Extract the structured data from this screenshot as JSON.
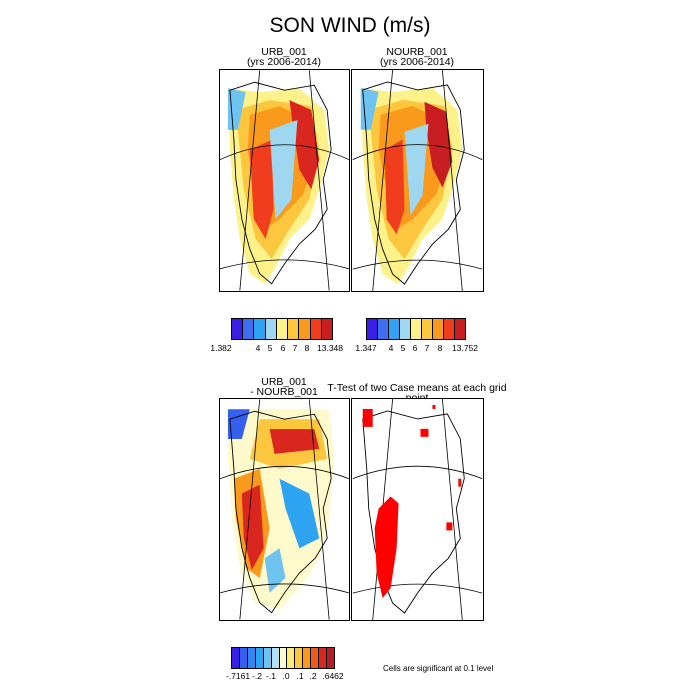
{
  "figure_title": "SON WIND (m/s)",
  "panels": {
    "urb": {
      "title_line1": "URB_001",
      "title_line2": "(yrs 2006-2014)"
    },
    "nourb": {
      "title_line1": "NOURB_001",
      "title_line2": "(yrs 2006-2014)"
    },
    "diff": {
      "title_line1": "URB_001",
      "title_line2": "- NOURB_001"
    },
    "ttest": {
      "title": "T-Test of two Case means at each grid point"
    }
  },
  "colorbars": {
    "urb": {
      "colors": [
        "#3a1ee6",
        "#3d6ff0",
        "#2ea3f2",
        "#9fd6f0",
        "#fdf28a",
        "#fcc63f",
        "#f99a1c",
        "#ef3d1e",
        "#c81e22"
      ],
      "labels": [
        "1.382",
        "4",
        "5",
        "6",
        "7",
        "8",
        "13.348"
      ]
    },
    "nourb": {
      "colors": [
        "#3a1ee6",
        "#3d6ff0",
        "#2ea3f2",
        "#9fd6f0",
        "#fdf28a",
        "#fcc63f",
        "#f99a1c",
        "#ef3d1e",
        "#c81e22"
      ],
      "labels": [
        "1.347",
        "4",
        "5",
        "6",
        "7",
        "8",
        "13.752"
      ]
    },
    "diff": {
      "colors": [
        "#3a1ee6",
        "#3560ee",
        "#2d89f0",
        "#2ea3f2",
        "#6fc3f0",
        "#b2e0f4",
        "#fffacc",
        "#fde87a",
        "#fcc63f",
        "#f99a1c",
        "#ef5a1e",
        "#d9261f",
        "#b51d25"
      ],
      "labels": [
        "-.7161",
        "-.2",
        "-.1",
        ".0",
        ".1",
        ".2",
        ".6462"
      ]
    }
  },
  "significance_note": "Cells are significant at 0.1 level",
  "colors": {
    "significant": "#ff0000",
    "outline": "#000000"
  }
}
